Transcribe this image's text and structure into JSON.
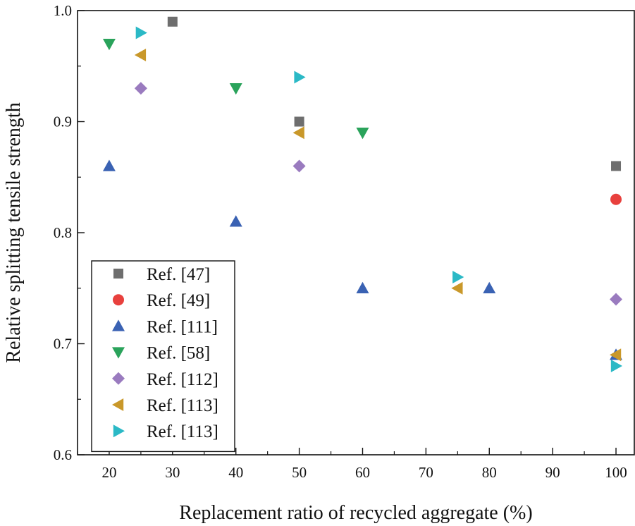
{
  "chart_data": {
    "type": "scatter",
    "title": "",
    "xlabel": "Replacement ratio of recycled aggregate (%)",
    "ylabel": "Relative splitting tensile strength",
    "xlim": [
      15,
      103
    ],
    "ylim": [
      0.6,
      1.0
    ],
    "xticks": [
      "20",
      "30",
      "40",
      "50",
      "60",
      "70",
      "80",
      "90",
      "100"
    ],
    "yticks": [
      "0.6",
      "0.7",
      "0.8",
      "0.9",
      "1.0"
    ],
    "legend_position": "bottom-left",
    "series": [
      {
        "name": "Ref. [47]",
        "marker": "square",
        "color": "#6e6e6e",
        "points": [
          {
            "x": 30,
            "y": 0.99
          },
          {
            "x": 50,
            "y": 0.9
          },
          {
            "x": 100,
            "y": 0.86
          }
        ]
      },
      {
        "name": "Ref. [49]",
        "marker": "circle",
        "color": "#e8403d",
        "points": [
          {
            "x": 100,
            "y": 0.83
          }
        ]
      },
      {
        "name": "Ref. [111]",
        "marker": "triangle-up",
        "color": "#3a62b3",
        "points": [
          {
            "x": 20,
            "y": 0.86
          },
          {
            "x": 40,
            "y": 0.81
          },
          {
            "x": 60,
            "y": 0.75
          },
          {
            "x": 80,
            "y": 0.75
          },
          {
            "x": 100,
            "y": 0.69
          }
        ]
      },
      {
        "name": "Ref. [58]",
        "marker": "triangle-down",
        "color": "#2aa35b",
        "points": [
          {
            "x": 20,
            "y": 0.97
          },
          {
            "x": 40,
            "y": 0.93
          },
          {
            "x": 60,
            "y": 0.89
          }
        ]
      },
      {
        "name": "Ref. [112]",
        "marker": "diamond",
        "color": "#9a7bbf",
        "points": [
          {
            "x": 25,
            "y": 0.93
          },
          {
            "x": 50,
            "y": 0.86
          },
          {
            "x": 100,
            "y": 0.74
          }
        ]
      },
      {
        "name": "Ref. [113]",
        "marker": "triangle-left",
        "color": "#c9982a",
        "points": [
          {
            "x": 25,
            "y": 0.96
          },
          {
            "x": 50,
            "y": 0.89
          },
          {
            "x": 75,
            "y": 0.75
          },
          {
            "x": 100,
            "y": 0.69
          }
        ]
      },
      {
        "name": "Ref. [113]",
        "marker": "triangle-right",
        "color": "#2bb9c6",
        "points": [
          {
            "x": 25,
            "y": 0.98
          },
          {
            "x": 50,
            "y": 0.94
          },
          {
            "x": 75,
            "y": 0.76
          },
          {
            "x": 100,
            "y": 0.68
          }
        ]
      }
    ]
  }
}
